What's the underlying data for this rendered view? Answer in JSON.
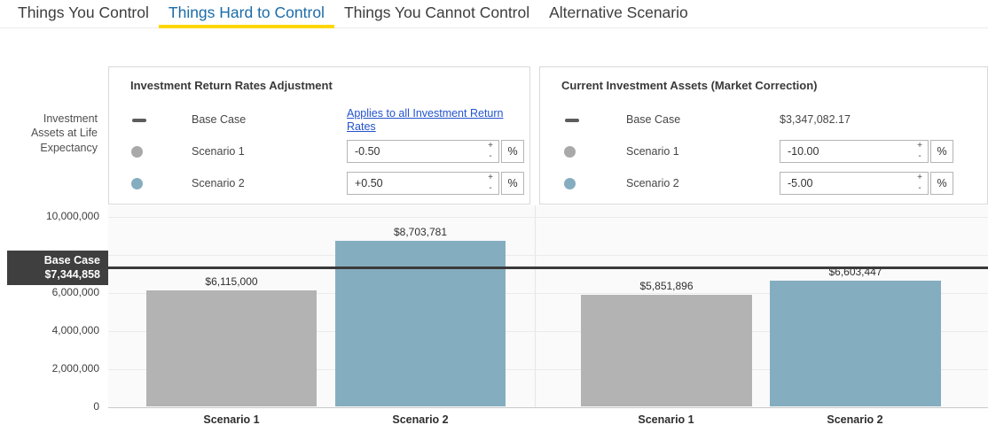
{
  "tabs": [
    {
      "label": "Things You Control",
      "active": false
    },
    {
      "label": "Things Hard to Control",
      "active": true
    },
    {
      "label": "Things You Cannot Control",
      "active": false
    },
    {
      "label": "Alternative Scenario",
      "active": false
    }
  ],
  "colors": {
    "active_tab_text": "#1b6ca9",
    "active_tab_underline": "#ffd60a",
    "bar_gray": "#b3b3b3",
    "bar_blue": "#85adc0",
    "baseline_dark": "#3a3a3a",
    "link_blue": "#2353cc"
  },
  "icons": {
    "step_up": "+",
    "step_down": "-"
  },
  "panels": {
    "left": {
      "title": "Investment Return Rates Adjustment",
      "base_case": {
        "label": "Base Case",
        "link": "Applies to all Investment Return Rates"
      },
      "scenario1": {
        "label": "Scenario 1",
        "value": "-0.50",
        "unit": "%"
      },
      "scenario2": {
        "label": "Scenario 2",
        "value": "+0.50",
        "unit": "%"
      }
    },
    "right": {
      "title": "Current Investment Assets (Market Correction)",
      "base_case": {
        "label": "Base Case",
        "value": "$3,347,082.17"
      },
      "scenario1": {
        "label": "Scenario 1",
        "value": "-10.00",
        "unit": "%"
      },
      "scenario2": {
        "label": "Scenario 2",
        "value": "-5.00",
        "unit": "%"
      }
    }
  },
  "chart_data": {
    "type": "bar",
    "ylabel": "Investment Assets at Life Expectancy",
    "ylim": [
      0,
      10700000
    ],
    "grid": true,
    "yticks": [
      {
        "label": "10,000,000",
        "value": 10000000
      },
      {
        "label": "6,000,000",
        "value": 6000000
      },
      {
        "label": "4,000,000",
        "value": 4000000
      },
      {
        "label": "2,000,000",
        "value": 2000000
      },
      {
        "label": "0",
        "value": 0
      }
    ],
    "baseline": {
      "label": "Base Case",
      "value": 7344858,
      "value_label": "$7,344,858"
    },
    "groups": [
      {
        "name": "Investment Return Rates Adjustment",
        "categories": [
          "Scenario 1",
          "Scenario 2"
        ],
        "values": [
          6115000,
          8703781
        ],
        "value_labels": [
          "$6,115,000",
          "$8,703,781"
        ]
      },
      {
        "name": "Current Investment Assets (Market Correction)",
        "categories": [
          "Scenario 1",
          "Scenario 2"
        ],
        "values": [
          5851896,
          6603447
        ],
        "value_labels": [
          "$5,851,896",
          "$6,603,447"
        ]
      }
    ]
  }
}
